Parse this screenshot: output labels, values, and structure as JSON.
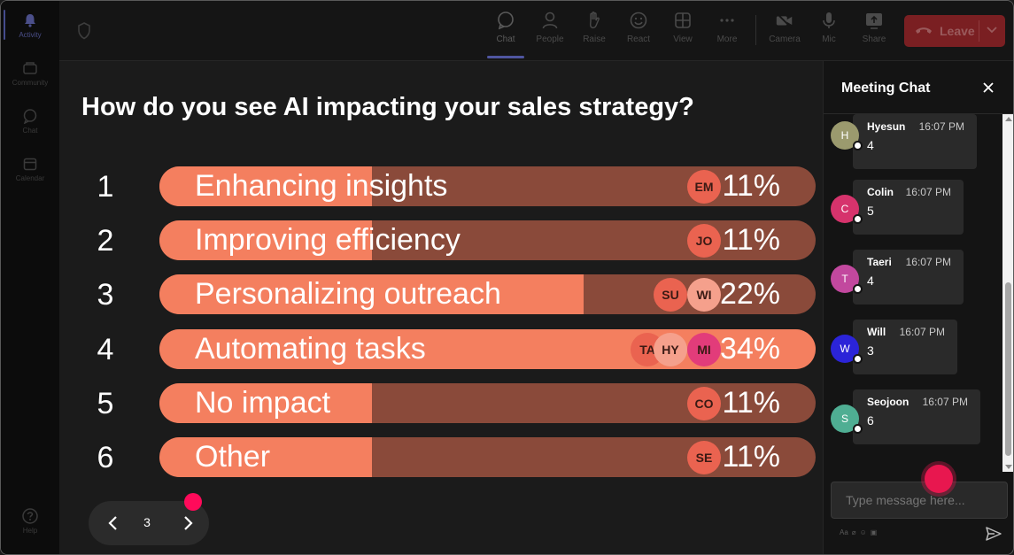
{
  "rail": {
    "items": [
      {
        "label": "Activity",
        "icon": "bell-icon"
      },
      {
        "label": "Community",
        "icon": "community-icon"
      },
      {
        "label": "Chat",
        "icon": "chat-icon"
      },
      {
        "label": "Calendar",
        "icon": "calendar-icon"
      }
    ],
    "help": {
      "label": "Help",
      "icon": "help-icon"
    }
  },
  "toolbar": {
    "items": [
      {
        "label": "Chat",
        "icon": "chat-icon"
      },
      {
        "label": "People",
        "icon": "people-icon"
      },
      {
        "label": "Raise",
        "icon": "hand-icon"
      },
      {
        "label": "React",
        "icon": "smile-icon"
      },
      {
        "label": "View",
        "icon": "grid-icon"
      },
      {
        "label": "More",
        "icon": "more-icon"
      },
      {
        "label": "Camera",
        "icon": "camera-icon"
      },
      {
        "label": "Mic",
        "icon": "mic-icon"
      },
      {
        "label": "Share",
        "icon": "share-icon"
      }
    ],
    "leave_label": "Leave",
    "leave_color": "#c4314b"
  },
  "poll": {
    "question": "How do you see AI impacting your sales strategy?",
    "options": [
      {
        "num": "1",
        "label": "Enhancing insights",
        "pct_label": "11%",
        "pct": 11,
        "voters": [
          "EM"
        ]
      },
      {
        "num": "2",
        "label": "Improving efficiency",
        "pct_label": "11%",
        "pct": 11,
        "voters": [
          "JO"
        ]
      },
      {
        "num": "3",
        "label": "Personalizing outreach",
        "pct_label": "22%",
        "pct": 22,
        "voters": [
          "SU",
          "WI"
        ]
      },
      {
        "num": "4",
        "label": "Automating tasks",
        "pct_label": "34%",
        "pct": 34,
        "voters": [
          "TA",
          "HY",
          "MI"
        ]
      },
      {
        "num": "5",
        "label": "No impact",
        "pct_label": "11%",
        "pct": 11,
        "voters": [
          "CO"
        ]
      },
      {
        "num": "6",
        "label": "Other",
        "pct_label": "11%",
        "pct": 11,
        "voters": [
          "SE"
        ]
      }
    ],
    "page": "3",
    "bar_color": "#f47f5f",
    "track_color": "#8a4a3a"
  },
  "chat": {
    "title": "Meeting Chat",
    "messages": [
      {
        "initial": "H",
        "name": "Hyesun",
        "time": "16:07 PM",
        "text": "4",
        "avatar_color": "#9b9a6e"
      },
      {
        "initial": "C",
        "name": "Colin",
        "time": "16:07 PM",
        "text": "5",
        "avatar_color": "#d6336c"
      },
      {
        "initial": "T",
        "name": "Taeri",
        "time": "16:07 PM",
        "text": "4",
        "avatar_color": "#c2489e"
      },
      {
        "initial": "W",
        "name": "Will",
        "time": "16:07 PM",
        "text": "3",
        "avatar_color": "#2b24d8"
      },
      {
        "initial": "S",
        "name": "Seojoon",
        "time": "16:07 PM",
        "text": "6",
        "avatar_color": "#4fae93"
      }
    ],
    "input_placeholder": "Type message here..."
  }
}
